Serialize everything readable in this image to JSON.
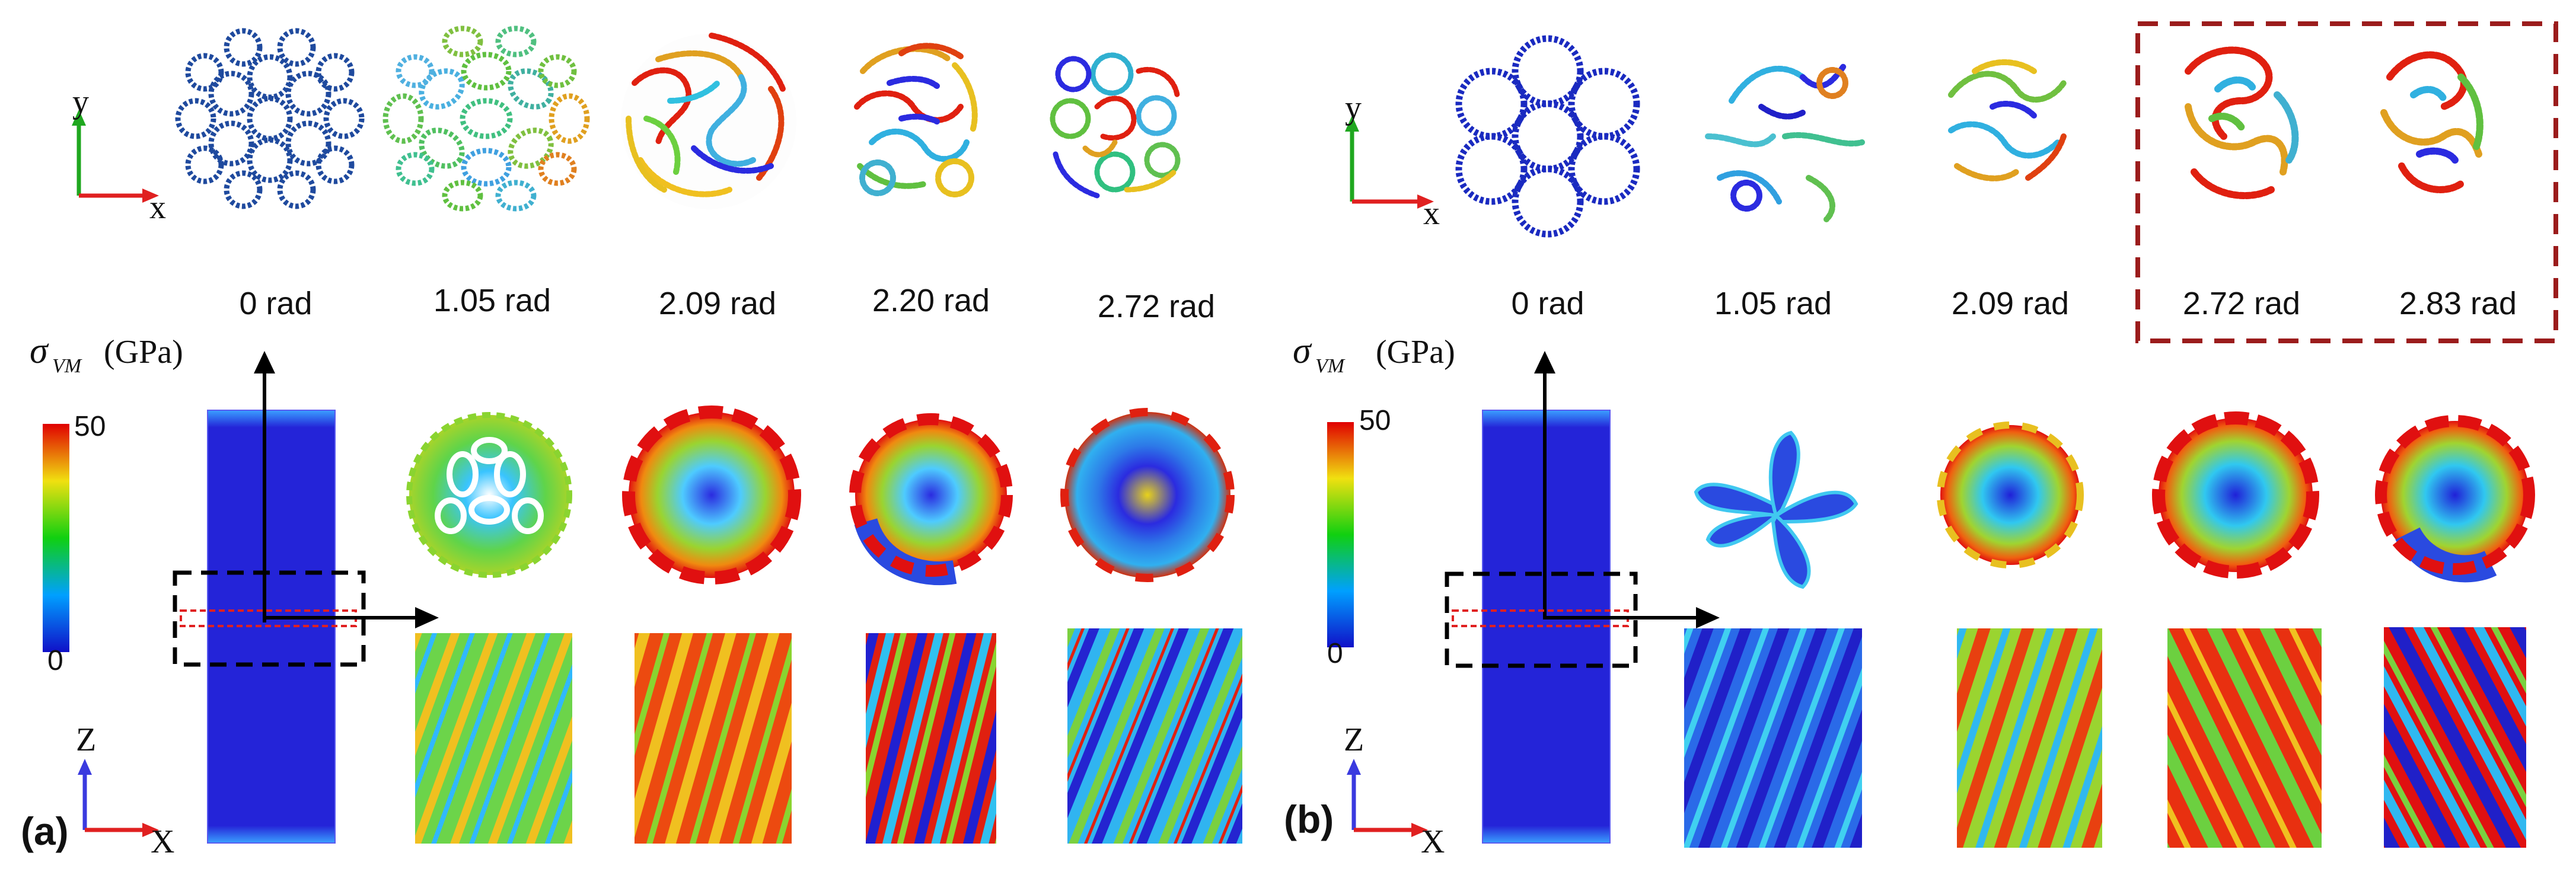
{
  "panel_a": {
    "label": "(a)",
    "angles": [
      "0 rad",
      "1.05 rad",
      "2.09 rad",
      "2.20 rad",
      "2.72 rad"
    ],
    "colorbar": {
      "symbol": "σ",
      "subscript": "VM",
      "unit": "(GPa)",
      "max": "50",
      "min": "0"
    },
    "axes_xy": {
      "vertical": "y",
      "horizontal": "x"
    },
    "axes_zx": {
      "vertical": "Z",
      "horizontal": "X"
    }
  },
  "panel_b": {
    "label": "(b)",
    "angles": [
      "0 rad",
      "1.05 rad",
      "2.09 rad",
      "2.72 rad",
      "2.83 rad"
    ],
    "colorbar": {
      "symbol": "σ",
      "subscript": "VM",
      "unit": "(GPa)",
      "max": "50",
      "min": "0"
    },
    "axes_xy": {
      "vertical": "y",
      "horizontal": "x"
    },
    "axes_zx": {
      "vertical": "Z",
      "horizontal": "X"
    }
  },
  "colors": {
    "low": "#1a1adf",
    "high": "#e01010",
    "highlight_box": "#9b1c1c",
    "axis_vertical_a": "#1fa71f",
    "axis_horizontal": "#e02020",
    "axis_z": "#3a3adf"
  }
}
